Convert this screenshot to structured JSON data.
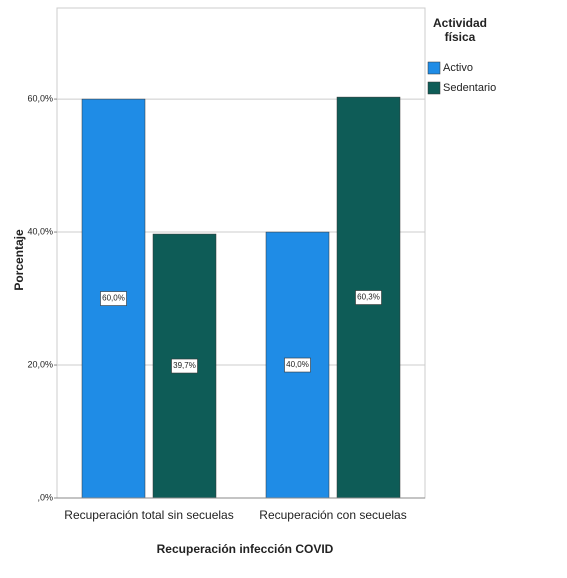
{
  "chart_data": {
    "type": "bar",
    "x_label": "Recuperación infección COVID",
    "y_label": "Porcentaje",
    "categories": [
      "Recuperación total sin secuelas",
      "Recuperación con secuelas"
    ],
    "series": [
      {
        "name": "Activo",
        "color": "#1f8ce6",
        "values": [
          60.0,
          40.0
        ],
        "value_labels": [
          "60,0%",
          "40,0%"
        ]
      },
      {
        "name": "Sedentario",
        "color": "#0e5c57",
        "values": [
          39.7,
          60.3
        ],
        "value_labels": [
          "39,7%",
          "60,3%"
        ]
      }
    ],
    "legend_title": "Actividad física",
    "legend_position": "right",
    "ylim": [
      0,
      73.7
    ],
    "yticks": [
      {
        "value": 0,
        "label": ",0%"
      },
      {
        "value": 20,
        "label": "20,0%"
      },
      {
        "value": 40,
        "label": "40,0%"
      },
      {
        "value": 60,
        "label": "60,0%"
      }
    ],
    "grid": true
  }
}
